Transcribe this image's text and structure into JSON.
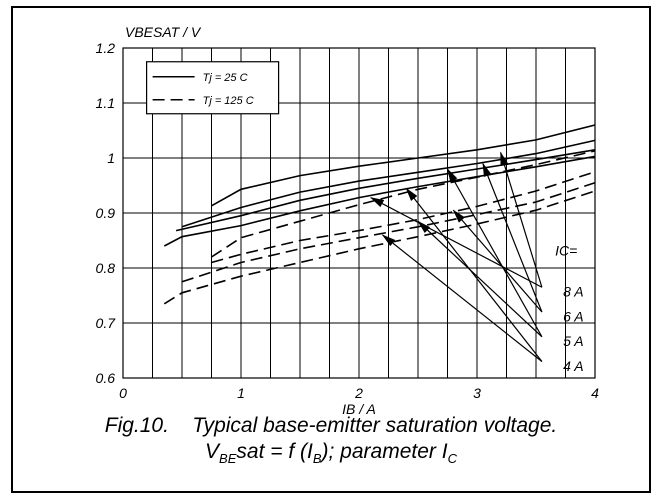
{
  "chart_data": {
    "type": "line",
    "ylabel": "VBESAT / V",
    "xlabel": "IB / A",
    "xlim": [
      0,
      4
    ],
    "ylim": [
      0.6,
      1.2
    ],
    "xticks": [
      "0",
      "1",
      "2",
      "3",
      "4"
    ],
    "yticks": [
      "0.6",
      "0.7",
      "0.8",
      "0.9",
      "1",
      "1.1",
      "1.2"
    ],
    "grid": true,
    "legend": {
      "placement": "top-left",
      "entries": [
        {
          "label": "Tj = 25 C",
          "style": "solid"
        },
        {
          "label": "Tj = 125 C",
          "style": "dashed"
        }
      ]
    },
    "parameter_title": "IC=",
    "parameter_labels": [
      "8 A",
      "6 A",
      "5 A",
      "4 A"
    ],
    "series": [
      {
        "ic": "8 A",
        "tj": "25 C",
        "style": "solid",
        "points": [
          [
            0.75,
            0.913
          ],
          [
            1.0,
            0.943
          ],
          [
            1.5,
            0.968
          ],
          [
            2.0,
            0.985
          ],
          [
            2.5,
            1.0
          ],
          [
            3.0,
            1.015
          ],
          [
            3.5,
            1.033
          ],
          [
            4.0,
            1.06
          ]
        ]
      },
      {
        "ic": "6 A",
        "tj": "25 C",
        "style": "solid",
        "points": [
          [
            0.5,
            0.875
          ],
          [
            1.0,
            0.91
          ],
          [
            1.5,
            0.938
          ],
          [
            2.0,
            0.958
          ],
          [
            2.5,
            0.974
          ],
          [
            3.0,
            0.99
          ],
          [
            3.5,
            1.008
          ],
          [
            4.0,
            1.032
          ]
        ]
      },
      {
        "ic": "5 A",
        "tj": "25 C",
        "style": "solid",
        "points": [
          [
            0.45,
            0.868
          ],
          [
            1.0,
            0.895
          ],
          [
            1.5,
            0.923
          ],
          [
            2.0,
            0.945
          ],
          [
            2.5,
            0.963
          ],
          [
            3.0,
            0.98
          ],
          [
            3.5,
            0.997
          ],
          [
            4.0,
            1.015
          ]
        ]
      },
      {
        "ic": "4 A",
        "tj": "25 C",
        "style": "solid",
        "points": [
          [
            0.35,
            0.84
          ],
          [
            0.5,
            0.857
          ],
          [
            1.0,
            0.877
          ],
          [
            1.5,
            0.904
          ],
          [
            2.0,
            0.928
          ],
          [
            2.5,
            0.948
          ],
          [
            3.0,
            0.966
          ],
          [
            3.5,
            0.984
          ],
          [
            4.0,
            1.003
          ]
        ]
      },
      {
        "ic": "8 A",
        "tj": "125 C",
        "style": "dashed",
        "points": [
          [
            0.75,
            0.82
          ],
          [
            1.0,
            0.855
          ],
          [
            1.5,
            0.885
          ],
          [
            2.0,
            0.915
          ],
          [
            2.5,
            0.943
          ],
          [
            3.0,
            0.965
          ],
          [
            3.5,
            0.988
          ],
          [
            4.0,
            1.013
          ]
        ]
      },
      {
        "ic": "6 A",
        "tj": "125 C",
        "style": "dashed",
        "points": [
          [
            0.75,
            0.81
          ],
          [
            1.0,
            0.825
          ],
          [
            1.5,
            0.85
          ],
          [
            2.0,
            0.868
          ],
          [
            2.5,
            0.888
          ],
          [
            3.0,
            0.912
          ],
          [
            3.5,
            0.94
          ],
          [
            4.0,
            0.975
          ]
        ]
      },
      {
        "ic": "5 A",
        "tj": "125 C",
        "style": "dashed",
        "points": [
          [
            0.5,
            0.775
          ],
          [
            1.0,
            0.81
          ],
          [
            1.5,
            0.835
          ],
          [
            2.0,
            0.855
          ],
          [
            2.5,
            0.875
          ],
          [
            3.0,
            0.897
          ],
          [
            3.5,
            0.92
          ],
          [
            4.0,
            0.955
          ]
        ]
      },
      {
        "ic": "4 A",
        "tj": "125 C",
        "style": "dashed",
        "points": [
          [
            0.35,
            0.735
          ],
          [
            0.5,
            0.755
          ],
          [
            1.0,
            0.785
          ],
          [
            1.5,
            0.81
          ],
          [
            2.0,
            0.835
          ],
          [
            2.5,
            0.857
          ],
          [
            3.0,
            0.88
          ],
          [
            3.5,
            0.905
          ],
          [
            4.0,
            0.94
          ]
        ]
      }
    ],
    "annotations": [
      {
        "points_to": "4 A / Tj 125 C",
        "tip": [
          2.2,
          0.86
        ]
      },
      {
        "points_to": "5 A / Tj 125 C",
        "tip": [
          2.5,
          0.885
        ]
      },
      {
        "points_to": "6 A / Tj 125 C",
        "tip": [
          2.8,
          0.905
        ]
      },
      {
        "points_to": "8 A / Tj 125 C",
        "tip": [
          2.1,
          0.928
        ]
      },
      {
        "points_to": "4 A / Tj 25 C",
        "tip": [
          2.4,
          0.945
        ]
      },
      {
        "points_to": "5 A / Tj 25 C",
        "tip": [
          2.75,
          0.98
        ]
      },
      {
        "points_to": "6 A / Tj 25 C",
        "tip": [
          3.05,
          0.99
        ]
      },
      {
        "points_to": "8 A / Tj 25 C",
        "tip": [
          3.2,
          1.01
        ]
      }
    ]
  },
  "caption": {
    "fig": "Fig.10.",
    "text": "Typical base-emitter saturation voltage.",
    "line2_v": "V",
    "line2_v_sub": "BE",
    "line2_mid": "sat = f (I",
    "line2_b_sub": "B",
    "line2_param": "); parameter I",
    "line2_c_sub": "C"
  }
}
